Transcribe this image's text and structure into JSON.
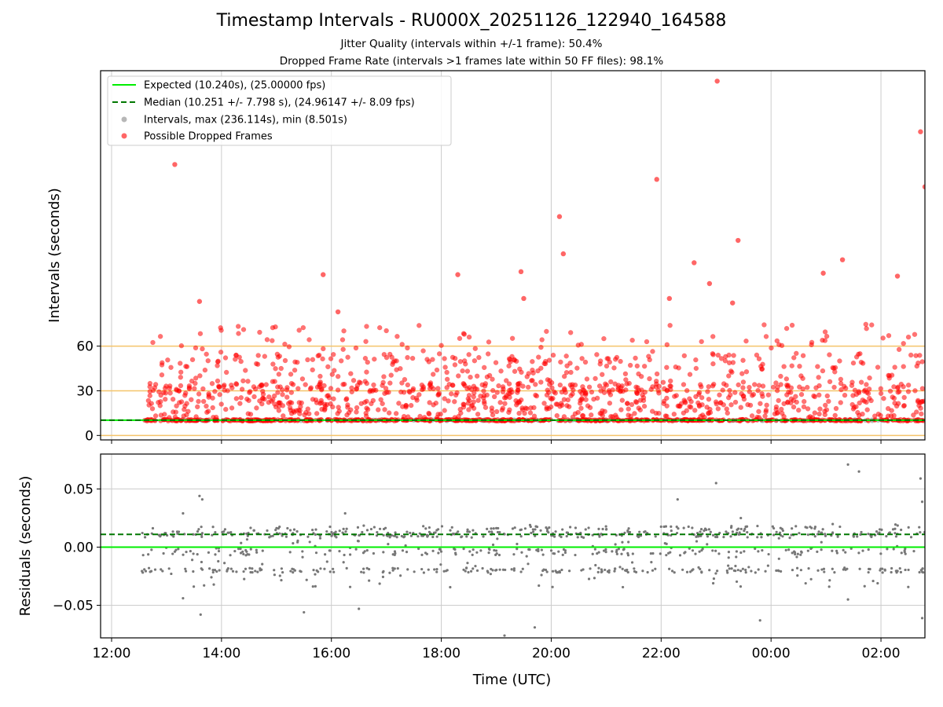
{
  "title": "Timestamp Intervals - RU000X_20251126_122940_164588",
  "subtitle1": "Jitter Quality (intervals within +/-1 frame): 50.4%",
  "subtitle2": "Dropped Frame Rate (intervals >1 frames late within 50 FF files): 98.1%",
  "colors": {
    "expected": "#00ee00",
    "median": "#007700",
    "intervals": "#999999",
    "dropped": "#ff0000",
    "threshold": "#f5c46a",
    "residual": "#777777",
    "grid": "#cccccc"
  },
  "chart_data": [
    {
      "type": "scatter",
      "name": "intervals",
      "ylabel": "Intervals (seconds)",
      "xlim": [
        11.8,
        26.8
      ],
      "ylim": [
        -3,
        245
      ],
      "yticks": [
        0,
        30,
        60
      ],
      "ytick_labels": [
        "0",
        "30",
        "60"
      ],
      "xticks": [
        12,
        14,
        16,
        18,
        20,
        22,
        24,
        26
      ],
      "xtick_labels": [
        "12:00",
        "14:00",
        "16:00",
        "18:00",
        "20:00",
        "22:00",
        "00:00",
        "02:00"
      ],
      "grid": true,
      "threshold_lines": [
        0,
        30,
        60
      ],
      "legend_position": "top-left",
      "legend": [
        {
          "label": "Expected (10.240s), (25.00000 fps)",
          "kind": "solid-line"
        },
        {
          "label": "Median (10.251 +/- 7.798 s), (24.96147 +/- 8.09 fps)",
          "kind": "dashed-line"
        },
        {
          "label": "Intervals, max (236.114s), min (8.501s)",
          "kind": "gray-dot"
        },
        {
          "label": "Possible Dropped Frames",
          "kind": "red-dot"
        }
      ],
      "expected_y": 10.24,
      "median_y": 10.251,
      "x_start": 12.5,
      "x_end": 26.8,
      "baseline_y": 10.24,
      "notable_points": [
        {
          "x": 13.15,
          "y": 182
        },
        {
          "x": 15.85,
          "y": 108
        },
        {
          "x": 18.3,
          "y": 108
        },
        {
          "x": 19.45,
          "y": 110
        },
        {
          "x": 20.15,
          "y": 147
        },
        {
          "x": 20.22,
          "y": 122
        },
        {
          "x": 21.92,
          "y": 172
        },
        {
          "x": 22.6,
          "y": 116
        },
        {
          "x": 22.88,
          "y": 102
        },
        {
          "x": 23.02,
          "y": 238
        },
        {
          "x": 23.4,
          "y": 131
        },
        {
          "x": 24.95,
          "y": 109
        },
        {
          "x": 25.3,
          "y": 118
        },
        {
          "x": 26.3,
          "y": 107
        },
        {
          "x": 26.72,
          "y": 204
        },
        {
          "x": 26.8,
          "y": 167
        },
        {
          "x": 13.6,
          "y": 90
        },
        {
          "x": 16.12,
          "y": 83
        },
        {
          "x": 19.5,
          "y": 92
        },
        {
          "x": 22.15,
          "y": 92
        },
        {
          "x": 23.3,
          "y": 89
        }
      ],
      "cluster_ranges": [
        [
          12,
          35
        ],
        [
          30,
          55
        ],
        [
          50,
          75
        ]
      ]
    },
    {
      "type": "scatter",
      "name": "residuals",
      "xlabel": "Time (UTC)",
      "ylabel": "Residuals (seconds)",
      "xlim": [
        11.8,
        26.8
      ],
      "ylim": [
        -0.078,
        0.08
      ],
      "yticks": [
        -0.05,
        0.0,
        0.05
      ],
      "ytick_labels": [
        "−0.05",
        "0.00",
        "0.05"
      ],
      "xticks": [
        12,
        14,
        16,
        18,
        20,
        22,
        24,
        26
      ],
      "xtick_labels": [
        "12:00",
        "14:00",
        "16:00",
        "18:00",
        "20:00",
        "22:00",
        "00:00",
        "02:00"
      ],
      "grid": true,
      "expected_y": 0.0,
      "median_y": 0.011,
      "bands": [
        0.011,
        -0.02,
        -0.004,
        0.016
      ],
      "outliers": [
        {
          "x": 13.6,
          "y": 0.044
        },
        {
          "x": 13.65,
          "y": 0.041
        },
        {
          "x": 13.3,
          "y": 0.029
        },
        {
          "x": 16.25,
          "y": 0.029
        },
        {
          "x": 22.3,
          "y": 0.041
        },
        {
          "x": 23.45,
          "y": 0.025
        },
        {
          "x": 23.0,
          "y": 0.055
        },
        {
          "x": 25.4,
          "y": 0.071
        },
        {
          "x": 25.6,
          "y": 0.065
        },
        {
          "x": 26.72,
          "y": 0.059
        },
        {
          "x": 26.75,
          "y": 0.039
        },
        {
          "x": 13.3,
          "y": -0.044
        },
        {
          "x": 13.62,
          "y": -0.058
        },
        {
          "x": 15.5,
          "y": -0.056
        },
        {
          "x": 16.5,
          "y": -0.053
        },
        {
          "x": 19.15,
          "y": -0.076
        },
        {
          "x": 19.7,
          "y": -0.069
        },
        {
          "x": 23.8,
          "y": -0.063
        },
        {
          "x": 25.4,
          "y": -0.045
        },
        {
          "x": 26.75,
          "y": -0.061
        }
      ]
    }
  ]
}
